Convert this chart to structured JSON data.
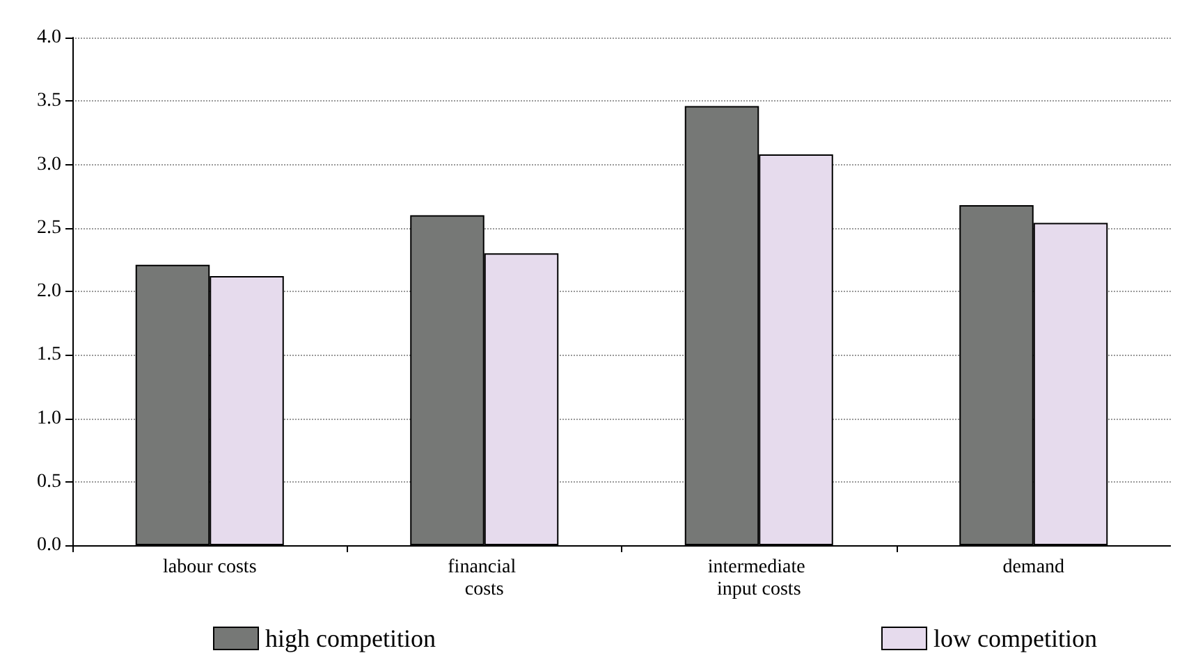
{
  "chart_data": {
    "type": "bar",
    "categories": [
      "labour costs",
      "financial costs",
      "intermediate input costs",
      "demand"
    ],
    "series": [
      {
        "name": "high competition",
        "color": "#767876",
        "values": [
          2.21,
          2.6,
          3.46,
          2.68
        ]
      },
      {
        "name": "low competition",
        "color": "#e6dbed",
        "values": [
          2.12,
          2.3,
          3.08,
          2.54
        ]
      }
    ],
    "ylim": [
      0,
      4
    ],
    "yticks": [
      {
        "value": 0,
        "label": "0.0"
      },
      0.5,
      {
        "value": 1,
        "label": "1.0"
      },
      1.5,
      {
        "value": 2,
        "label": "2.0"
      },
      2.5,
      {
        "value": 3,
        "label": "3.0"
      },
      3.5,
      {
        "value": 4,
        "label": "4.0"
      }
    ],
    "grid": "y",
    "legend": "bottom"
  }
}
